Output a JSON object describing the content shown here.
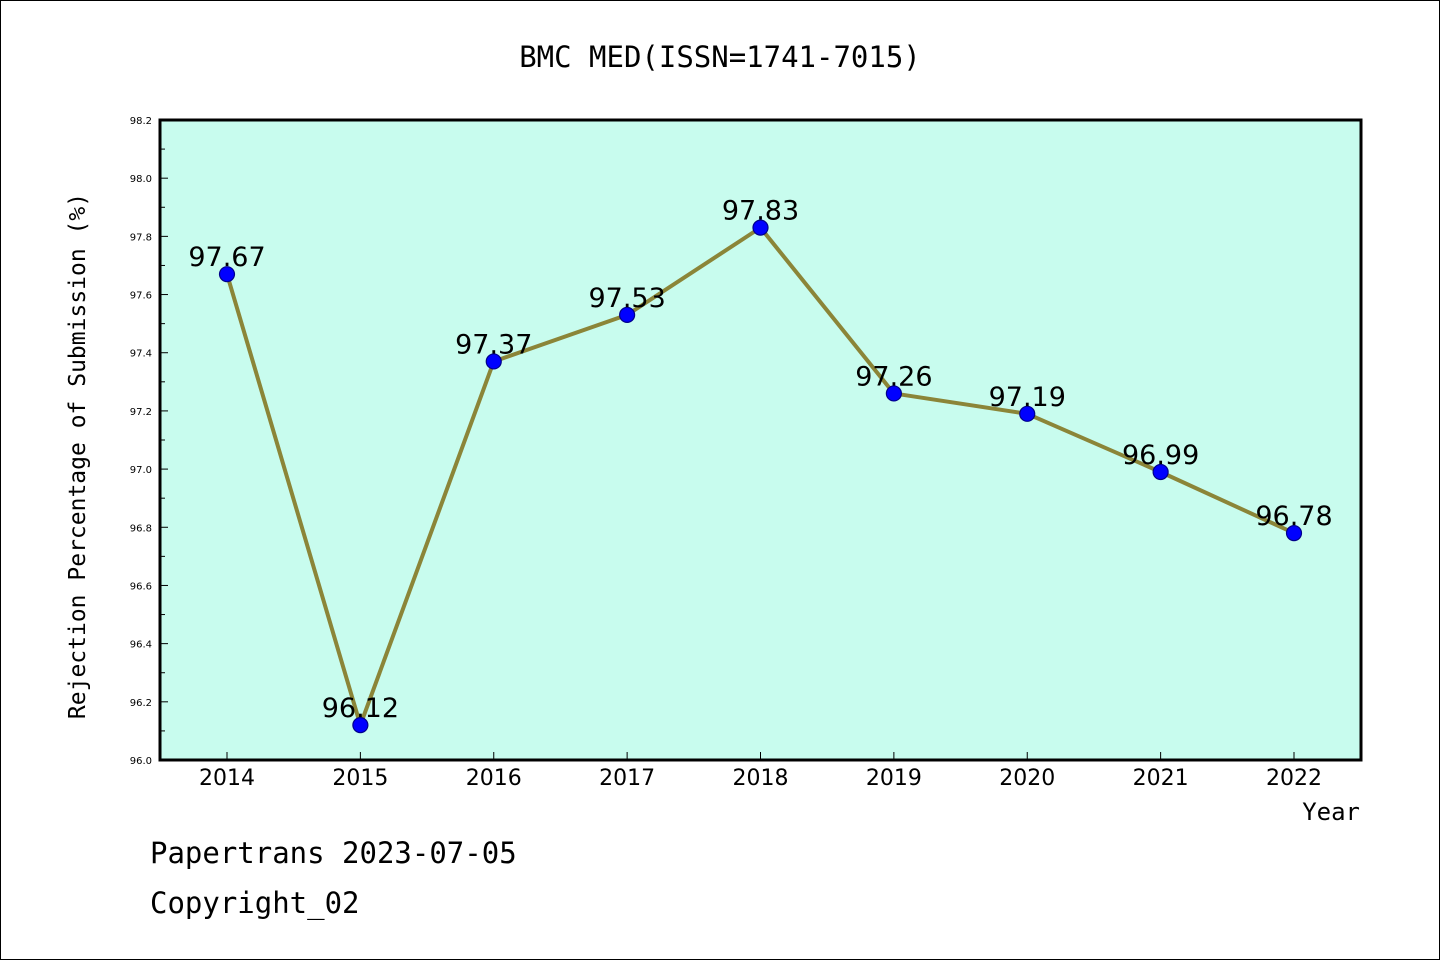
{
  "chart_data": {
    "type": "line",
    "title": "BMC MED(ISSN=1741-7015)",
    "xlabel": "Year",
    "ylabel": "Rejection Percentage of Submission (%)",
    "categories": [
      "2014",
      "2015",
      "2016",
      "2017",
      "2018",
      "2019",
      "2020",
      "2021",
      "2022"
    ],
    "values": [
      97.67,
      96.12,
      97.37,
      97.53,
      97.83,
      97.26,
      97.19,
      96.99,
      96.78
    ],
    "data_labels": [
      "97.67",
      "96.12",
      "97.37",
      "97.53",
      "97.83",
      "97.26",
      "97.19",
      "96.99",
      "96.78"
    ],
    "ylim": [
      96.0,
      98.2
    ],
    "y_ticks": [
      "96.0",
      "96.2",
      "96.4",
      "96.6",
      "96.8",
      "97.0",
      "97.2",
      "97.4",
      "97.6",
      "97.8",
      "98.0",
      "98.2"
    ],
    "grid": false,
    "colors": {
      "plot_background": "#c8fcee",
      "line": "#8b8538",
      "marker": "#0000ff",
      "marker_edge": "#00008b"
    }
  },
  "footer": {
    "line1": "Papertrans 2023-07-05",
    "line2": "Copyright_02"
  }
}
